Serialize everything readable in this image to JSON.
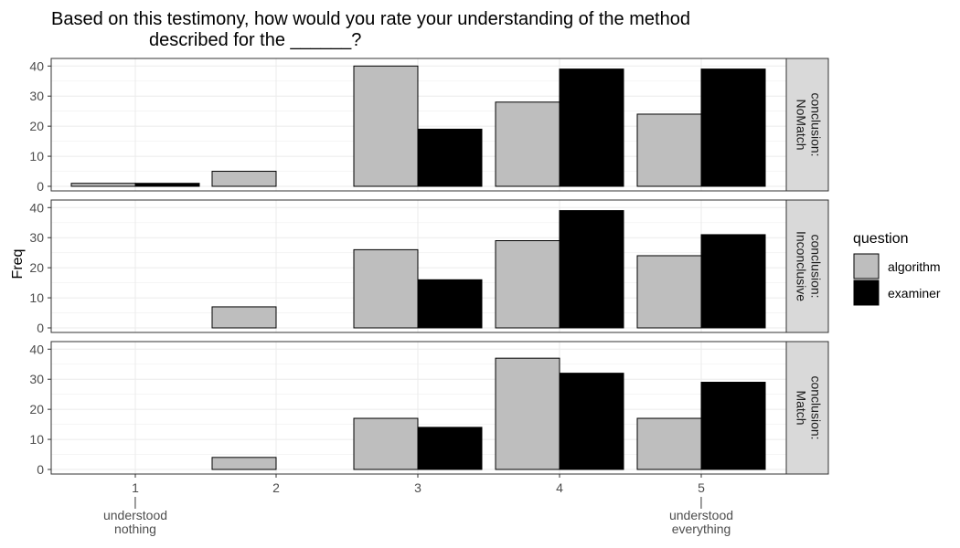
{
  "chart_data": {
    "type": "bar",
    "title_lines": [
      "Based on this testimony, how would you rate your understanding of the method",
      "described for the ______?"
    ],
    "ylabel": "Freq",
    "categories": [
      "1",
      "2",
      "3",
      "4",
      "5"
    ],
    "category_sublabels": [
      [
        "|",
        "understood",
        "nothing"
      ],
      [],
      [],
      [],
      [
        "|",
        "understood",
        "everything"
      ]
    ],
    "ylim": [
      0,
      41
    ],
    "yticks": [
      0,
      10,
      20,
      30,
      40
    ],
    "grid": true,
    "legend": {
      "title": "question",
      "position": "right",
      "entries": [
        "algorithm",
        "examiner"
      ]
    },
    "series_colors": {
      "algorithm": "#bebebe",
      "examiner": "#000000"
    },
    "facets": [
      {
        "strip_lines": [
          "conclusion:",
          "NoMatch"
        ],
        "series": [
          {
            "name": "algorithm",
            "values": [
              1,
              5,
              40,
              28,
              24
            ]
          },
          {
            "name": "examiner",
            "values": [
              1,
              0,
              19,
              39,
              39
            ]
          }
        ]
      },
      {
        "strip_lines": [
          "conclusion:",
          "Inconclusive"
        ],
        "series": [
          {
            "name": "algorithm",
            "values": [
              0,
              7,
              26,
              29,
              24
            ]
          },
          {
            "name": "examiner",
            "values": [
              0,
              0,
              16,
              39,
              31
            ]
          }
        ]
      },
      {
        "strip_lines": [
          "conclusion:",
          "Match"
        ],
        "series": [
          {
            "name": "algorithm",
            "values": [
              0,
              4,
              17,
              37,
              17
            ]
          },
          {
            "name": "examiner",
            "values": [
              0,
              0,
              14,
              32,
              29
            ]
          }
        ]
      }
    ]
  }
}
